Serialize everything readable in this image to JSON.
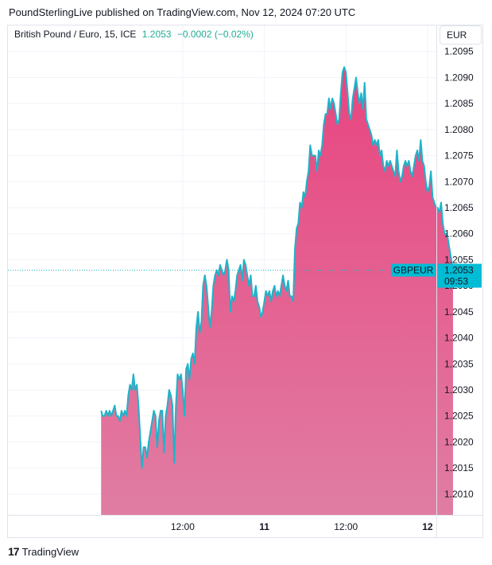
{
  "header": {
    "publisher_line": "PoundSterlingLive published on TradingView.com, Nov 12, 2024 07:20 UTC"
  },
  "legend": {
    "symbol": "British Pound / Euro, 15, ICE",
    "last": "1.2053",
    "change": "−0.0002 (−0.02%)"
  },
  "currency_label": "EUR",
  "price_tag": {
    "ticker": "GBPEUR",
    "price": "1.2053",
    "countdown": "09:53"
  },
  "footer": {
    "brand": "TradingView",
    "logo": "17"
  },
  "colors": {
    "line": "#1fb3c8",
    "area_top": "#e8457f",
    "area_bottom": "#e07da3",
    "tag_bg": "#00bcd4",
    "grid": "#f0f3fa"
  },
  "chart_data": {
    "type": "area",
    "title": "British Pound / Euro, 15, ICE",
    "xlabel": "",
    "ylabel": "EUR",
    "ylim": [
      1.2006,
      1.21
    ],
    "yticks": [
      1.201,
      1.2015,
      1.202,
      1.2025,
      1.203,
      1.2035,
      1.204,
      1.2045,
      1.205,
      1.2055,
      1.206,
      1.2065,
      1.207,
      1.2075,
      1.208,
      1.2085,
      1.209,
      1.2095
    ],
    "ytick_labels": [
      "1.2010",
      "1.2015",
      "1.2020",
      "1.2025",
      "1.2030",
      "1.2035",
      "1.2040",
      "1.2045",
      "1.2050",
      "1.2055",
      "1.2060",
      "1.2065",
      "1.2070",
      "1.2075",
      "1.2080",
      "1.2085",
      "1.2090",
      "1.2095"
    ],
    "xrange_hours": [
      -13.7,
      49.3
    ],
    "xticks": [
      {
        "hour": 12,
        "label": "12:00",
        "bold": false
      },
      {
        "hour": 24,
        "label": "11",
        "bold": true
      },
      {
        "hour": 36,
        "label": "12:00",
        "bold": false
      },
      {
        "hour": 48,
        "label": "12",
        "bold": true
      },
      {
        "hour": 60,
        "label": "12:00",
        "bold": false
      }
    ],
    "x_hours_start": 0,
    "x_hours_step": 0.25,
    "grid": true,
    "last_value": 1.2053,
    "series": [
      {
        "values": [
          1.2026,
          1.2025,
          1.2025,
          1.2026,
          1.2025,
          1.2026,
          1.2025,
          1.2026,
          1.2027,
          1.2025,
          1.2025,
          1.2024,
          1.2026,
          1.2025,
          1.2026,
          1.2025,
          1.2029,
          1.2031,
          1.203,
          1.2033,
          1.203,
          1.2031,
          1.2027,
          1.2021,
          1.2015,
          1.2019,
          1.2019,
          1.2017,
          1.202,
          1.2022,
          1.2024,
          1.2026,
          1.2025,
          1.2019,
          1.2024,
          1.2026,
          1.2026,
          1.2018,
          1.2025,
          1.2027,
          1.203,
          1.2029,
          1.2027,
          1.2016,
          1.2027,
          1.2033,
          1.2032,
          1.2033,
          1.203,
          1.2025,
          1.2034,
          1.2035,
          1.2032,
          1.2036,
          1.2037,
          1.2035,
          1.2042,
          1.2045,
          1.2041,
          1.2043,
          1.205,
          1.2052,
          1.205,
          1.2046,
          1.2042,
          1.2045,
          1.205,
          1.2052,
          1.2053,
          1.2052,
          1.2054,
          1.2053,
          1.2052,
          1.2053,
          1.2055,
          1.2053,
          1.2045,
          1.2048,
          1.2047,
          1.2049,
          1.2052,
          1.2053,
          1.2054,
          1.2051,
          1.2055,
          1.2054,
          1.2052,
          1.205,
          1.2052,
          1.2048,
          1.2048,
          1.205,
          1.2047,
          1.2046,
          1.2044,
          1.2045,
          1.2047,
          1.2049,
          1.2048,
          1.2049,
          1.2047,
          1.2049,
          1.205,
          1.2048,
          1.2049,
          1.2048,
          1.205,
          1.2052,
          1.205,
          1.2049,
          1.2051,
          1.2048,
          1.2048,
          1.2047,
          1.2057,
          1.2061,
          1.2062,
          1.2066,
          1.2065,
          1.2068,
          1.2067,
          1.207,
          1.2072,
          1.2077,
          1.2075,
          1.2075,
          1.2075,
          1.2072,
          1.2076,
          1.2075,
          1.2077,
          1.2081,
          1.2083,
          1.2083,
          1.2086,
          1.2084,
          1.2086,
          1.2085,
          1.2083,
          1.2081,
          1.2082,
          1.2087,
          1.2091,
          1.2092,
          1.2091,
          1.2087,
          1.2083,
          1.2082,
          1.2086,
          1.2088,
          1.209,
          1.2087,
          1.2085,
          1.2087,
          1.2084,
          1.2089,
          1.2082,
          1.2081,
          1.208,
          1.2079,
          1.2077,
          1.2078,
          1.2077,
          1.2078,
          1.2075,
          1.2076,
          1.2073,
          1.2072,
          1.2074,
          1.2073,
          1.2074,
          1.2073,
          1.2072,
          1.2071,
          1.2076,
          1.2072,
          1.207,
          1.2071,
          1.2073,
          1.2074,
          1.2073,
          1.2074,
          1.2072,
          1.2071,
          1.2073,
          1.2075,
          1.2076,
          1.2074,
          1.2078,
          1.2074,
          1.2073,
          1.207,
          1.2068,
          1.2069,
          1.2072,
          1.2067,
          1.2066,
          1.2065,
          1.2065,
          1.2064,
          1.2066,
          1.2062,
          1.206,
          1.206,
          1.2059,
          1.2057,
          1.2055,
          1.2053
        ]
      }
    ]
  }
}
